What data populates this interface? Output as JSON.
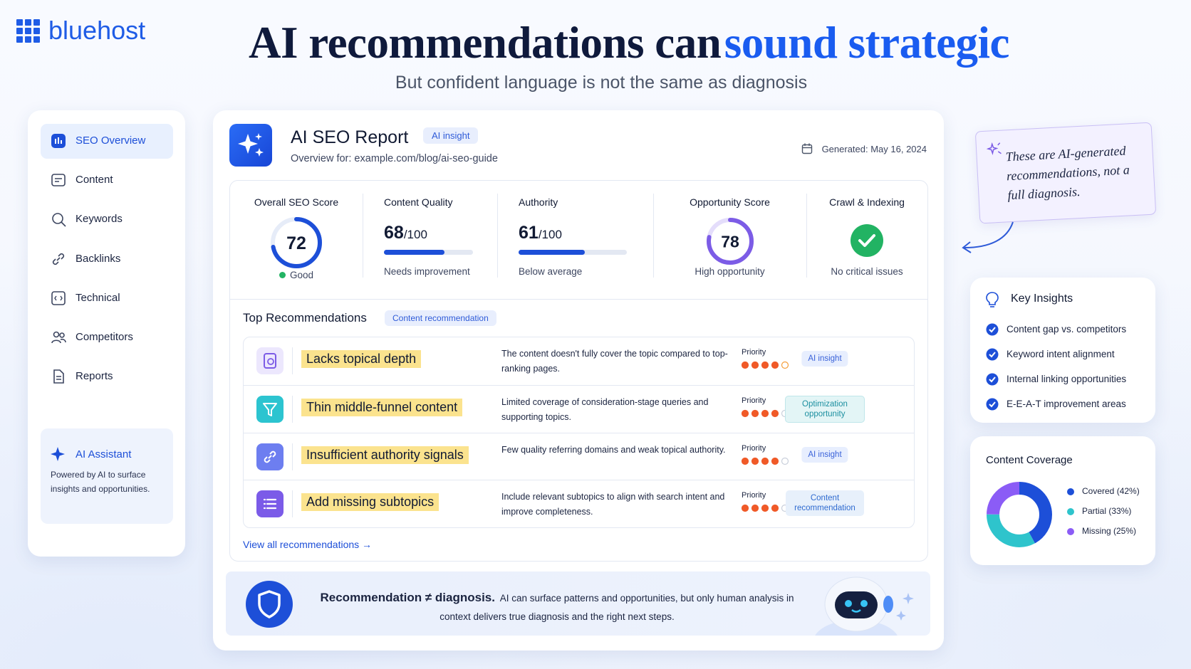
{
  "logo": "bluehost",
  "header": {
    "title_part1": "AI recommendations can",
    "title_part2": "sound strategic",
    "subtitle": "But confident language is not the same as diagnosis"
  },
  "sidebar": {
    "items": [
      "SEO Overview",
      "Content",
      "Keywords",
      "Backlinks",
      "Technical",
      "Competitors",
      "Reports"
    ],
    "assistant": {
      "title": "AI Assistant",
      "text": "Powered by AI to surface insights and opportunities."
    }
  },
  "report": {
    "title": "AI SEO Report",
    "badge": "AI insight",
    "overview": "Overview for: example.com/blog/ai-seo-guide",
    "generated": "Generated: May 16, 2024",
    "metrics": [
      {
        "title": "Overall SEO Score",
        "score": 72,
        "status": "Good"
      },
      {
        "title": "Content Quality",
        "score": 68,
        "out_of": {
          "value": 100,
          "label": "/100"
        },
        "status": "Needs improvement"
      },
      {
        "title": "Authority",
        "score": 61,
        "out_of": {
          "value": 100,
          "label": "/100"
        },
        "status": "Below average"
      },
      {
        "title": "Opportunity Score",
        "score": 78,
        "status": "High opportunity"
      },
      {
        "title": "Crawl & Indexing",
        "status": "No critical issues"
      }
    ],
    "recommendations_title": "Top Recommendations",
    "recommendations_badge": "Content recommendation",
    "priority_label": "Priority",
    "recommendations": [
      {
        "title": "Lacks topical depth",
        "description": "The content doesn't fully cover the topic compared to top-ranking pages.",
        "priority": 4,
        "tag": "AI insight"
      },
      {
        "title": "Thin middle-funnel content",
        "description": "Limited coverage of consideration-stage queries and supporting topics.",
        "priority": 4,
        "tag": "Optimization opportunity"
      },
      {
        "title": "Insufficient authority signals",
        "description": "Few quality referring domains and weak topical authority.",
        "priority": 4,
        "tag": "AI insight"
      },
      {
        "title": "Add missing subtopics",
        "description": "Include relevant subtopics to align with search intent and improve completeness.",
        "priority": 4,
        "tag": "Content recommendation"
      }
    ],
    "view_all": "View all recommendations →",
    "footer": {
      "bold": "Recommendation ≠ diagnosis.",
      "text": "AI can surface patterns and opportunities, but only human analysis in context delivers true diagnosis and the right next steps."
    }
  },
  "note": "These are AI-generated recommendations, not a full diagnosis.",
  "key_insights": {
    "title": "Key Insights",
    "items": [
      "Content gap vs. competitors",
      "Keyword intent alignment",
      "Internal linking opportunities",
      "E-E-A-T improvement areas"
    ]
  },
  "coverage": {
    "title": "Content Coverage",
    "segments": [
      {
        "label": "Covered (42%)",
        "value": 42,
        "color": "#1d4fd8"
      },
      {
        "label": "Partial (33%)",
        "value": 33,
        "color": "#2ec4cc"
      },
      {
        "label": "Missing (25%)",
        "value": 25,
        "color": "#8b5cf6"
      }
    ]
  }
}
